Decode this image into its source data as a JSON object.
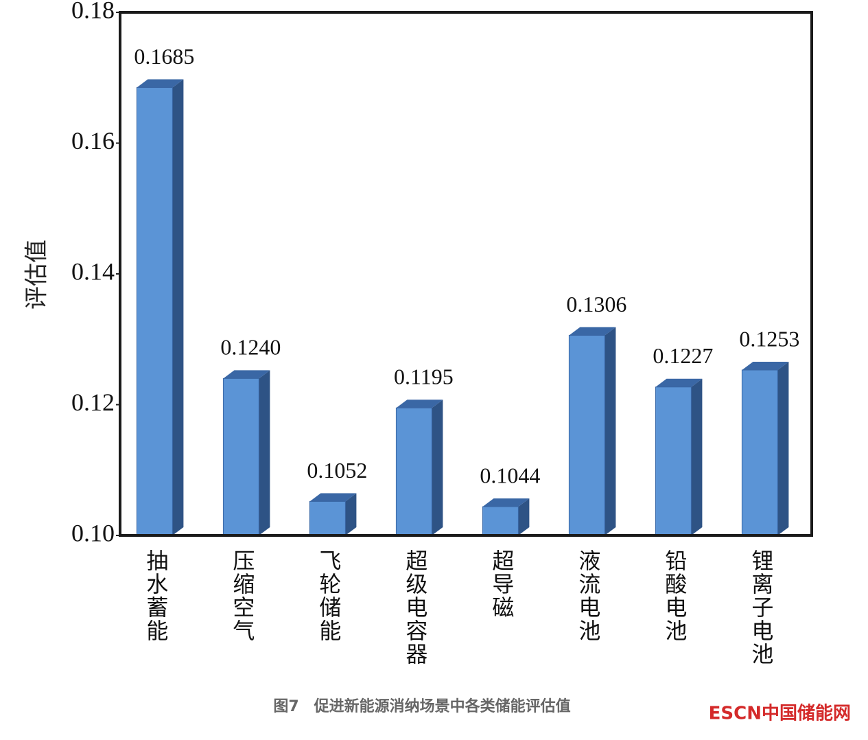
{
  "chart_data": {
    "type": "bar3d",
    "y_label": "评估值",
    "categories": [
      "抽水蓄能",
      "压缩空气",
      "飞轮储能",
      "超级电容器",
      "超导磁",
      "液流电池",
      "铅酸电池",
      "锂离子电池"
    ],
    "values": [
      0.1685,
      0.124,
      0.1052,
      0.1195,
      0.1044,
      0.1306,
      0.1227,
      0.1253
    ],
    "value_labels": [
      "0.1685",
      "0.1240",
      "0.1052",
      "0.1195",
      "0.1044",
      "0.1306",
      "0.1227",
      "0.1253"
    ],
    "color": "#5b94d6",
    "ylim": [
      0.1,
      0.18
    ],
    "yticks": [
      {
        "value": 0.1,
        "label": "0.10"
      },
      0.12,
      0.14,
      0.16,
      0.18
    ],
    "caption": "图7　促进新能源消纳场景中各类储能评估值",
    "watermark": "ESCN中国储能网"
  }
}
